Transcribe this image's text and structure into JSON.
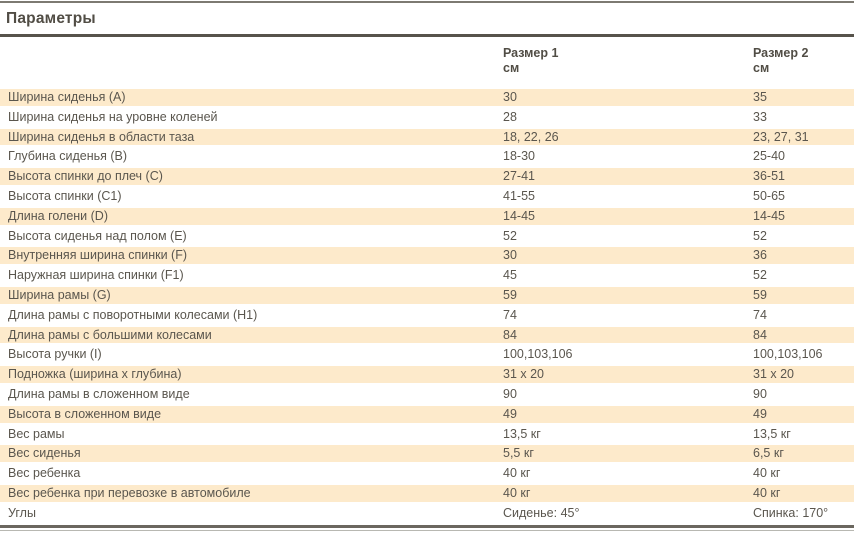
{
  "title": "Параметры",
  "table": {
    "columns": [
      {
        "label": "Размер 1",
        "unit": "см"
      },
      {
        "label": "Размер 2",
        "unit": "см"
      }
    ],
    "rows": [
      {
        "label": "Ширина сиденья (A)",
        "size1": "30",
        "size2": "35"
      },
      {
        "label": "Ширина сиденья на уровне коленей",
        "size1": "28",
        "size2": "33"
      },
      {
        "label": "Ширина сиденья в области таза",
        "size1": "18, 22, 26",
        "size2": "23, 27, 31"
      },
      {
        "label": "Глубина сиденья (B)",
        "size1": "18-30",
        "size2": "25-40"
      },
      {
        "label": "Высота спинки до плеч (C)",
        "size1": "27-41",
        "size2": "36-51"
      },
      {
        "label": "Высота спинки (C1)",
        "size1": "41-55",
        "size2": "50-65"
      },
      {
        "label": "Длина голени (D)",
        "size1": "14-45",
        "size2": "14-45"
      },
      {
        "label": "Высота сиденья над полом (E)",
        "size1": "52",
        "size2": "52"
      },
      {
        "label": "Внутренняя ширина спинки (F)",
        "size1": "30",
        "size2": "36"
      },
      {
        "label": "Наружная ширина спинки (F1)",
        "size1": "45",
        "size2": "52"
      },
      {
        "label": "Ширина рамы (G)",
        "size1": "59",
        "size2": "59"
      },
      {
        "label": "Длина рамы с поворотными колесами (H1)",
        "size1": "74",
        "size2": "74"
      },
      {
        "label": "Длина рамы с большими колесами",
        "size1": "84",
        "size2": "84"
      },
      {
        "label": "Высота ручки (I)",
        "size1": "100,103,106",
        "size2": "100,103,106"
      },
      {
        "label": "Подножка (ширина x глубина)",
        "size1": "31 x 20",
        "size2": "31 x 20"
      },
      {
        "label": "Длина рамы в сложенном виде",
        "size1": "90",
        "size2": "90"
      },
      {
        "label": "Высота в сложенном виде",
        "size1": "49",
        "size2": "49"
      },
      {
        "label": "Вес рамы",
        "size1": "13,5 кг",
        "size2": "13,5 кг"
      },
      {
        "label": "Вес сиденья",
        "size1": "5,5 кг",
        "size2": "6,5 кг"
      },
      {
        "label": "Вес ребенка",
        "size1": "40 кг",
        "size2": "40 кг"
      },
      {
        "label": "Вес ребенка при перевозке в автомобиле",
        "size1": "40 кг",
        "size2": "40 кг"
      },
      {
        "label": "Углы",
        "size1": "Сиденье: 45°",
        "size2": "Спинка: 170°"
      }
    ]
  },
  "colors": {
    "stripe": "#fdeacb",
    "text": "#5a564e",
    "heading_text": "#514d45",
    "rule_dark": "#57534b",
    "rule_bottom_dark": "#6b675f",
    "rule_bottom_light": "#b8b8b2",
    "rule_top": "#7d7a72"
  }
}
